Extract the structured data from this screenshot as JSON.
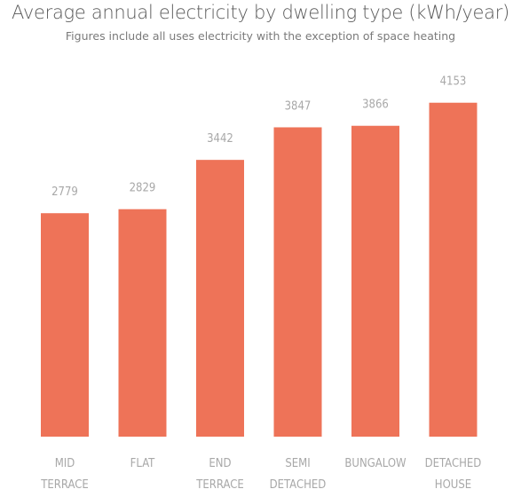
{
  "chart_data": {
    "type": "bar",
    "title": "Average annual electricity by dwelling type (kWh/year)",
    "subtitle": "Figures include all uses electricity with the exception of space heating",
    "categories": [
      [
        "MID",
        "TERRACE"
      ],
      [
        "FLAT"
      ],
      [
        "END",
        "TERRACE"
      ],
      [
        "SEMI",
        "DETACHED"
      ],
      [
        "BUNGALOW"
      ],
      [
        "DETACHED",
        "HOUSE"
      ]
    ],
    "values": [
      2779,
      2829,
      3442,
      3847,
      3866,
      4153
    ],
    "ylim": [
      0,
      4500
    ],
    "grid": false,
    "legend": "none",
    "bar_color": "#ee7358",
    "label_color": "#a8a8a8"
  }
}
